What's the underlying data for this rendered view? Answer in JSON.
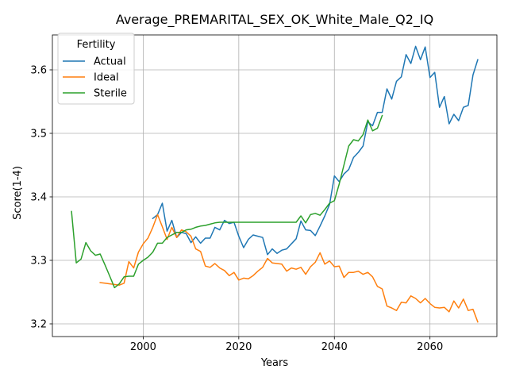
{
  "chart_data": {
    "type": "line",
    "title": "Average_PREMARITAL_SEX_OK_White_Male_Q2_IQ",
    "xlabel": "Years",
    "ylabel": "Score(1-4)",
    "xlim": [
      1981,
      2074
    ],
    "ylim": [
      3.18,
      3.655
    ],
    "xticks": [
      2000,
      2020,
      2040,
      2060
    ],
    "yticks": [
      3.2,
      3.3,
      3.4,
      3.5,
      3.6
    ],
    "grid": true,
    "legend": {
      "title": "Fertility",
      "placement": "upper-left"
    },
    "series": [
      {
        "name": "Actual",
        "color": "#1f77b4",
        "x": [
          2002,
          2003,
          2004,
          2005,
          2006,
          2007,
          2008,
          2009,
          2010,
          2011,
          2012,
          2013,
          2014,
          2015,
          2016,
          2017,
          2018,
          2019,
          2020,
          2021,
          2022,
          2023,
          2024,
          2025,
          2026,
          2027,
          2028,
          2029,
          2030,
          2031,
          2032,
          2033,
          2034,
          2035,
          2036,
          2037,
          2038,
          2039,
          2040,
          2041,
          2042,
          2043,
          2044,
          2045,
          2046,
          2047,
          2048,
          2049,
          2050,
          2051,
          2052,
          2053,
          2054,
          2055,
          2056,
          2057,
          2058,
          2059,
          2060,
          2061,
          2062,
          2063,
          2064,
          2065,
          2066,
          2067,
          2068,
          2069,
          2070
        ],
        "y": [
          3.366,
          3.372,
          3.39,
          3.346,
          3.363,
          3.336,
          3.344,
          3.342,
          3.328,
          3.337,
          3.327,
          3.335,
          3.335,
          3.352,
          3.348,
          3.363,
          3.358,
          3.36,
          3.338,
          3.32,
          3.333,
          3.34,
          3.338,
          3.336,
          3.309,
          3.318,
          3.311,
          3.316,
          3.318,
          3.326,
          3.334,
          3.362,
          3.348,
          3.347,
          3.339,
          3.354,
          3.37,
          3.388,
          3.433,
          3.424,
          3.436,
          3.443,
          3.462,
          3.47,
          3.48,
          3.518,
          3.512,
          3.533,
          3.533,
          3.57,
          3.554,
          3.582,
          3.589,
          3.624,
          3.61,
          3.637,
          3.616,
          3.636,
          3.588,
          3.596,
          3.541,
          3.558,
          3.515,
          3.53,
          3.52,
          3.541,
          3.544,
          3.592,
          3.616
        ]
      },
      {
        "name": "Ideal",
        "color": "#ff7f0e",
        "x": [
          1991,
          1992,
          1993,
          1994,
          1995,
          1996,
          1997,
          1998,
          1999,
          2000,
          2001,
          2002,
          2003,
          2004,
          2005,
          2006,
          2007,
          2008,
          2009,
          2010,
          2011,
          2012,
          2013,
          2014,
          2015,
          2016,
          2017,
          2018,
          2019,
          2020,
          2021,
          2022,
          2023,
          2024,
          2025,
          2026,
          2027,
          2028,
          2029,
          2030,
          2031,
          2032,
          2033,
          2034,
          2035,
          2036,
          2037,
          2038,
          2039,
          2040,
          2041,
          2042,
          2043,
          2044,
          2045,
          2046,
          2047,
          2048,
          2049,
          2050,
          2051,
          2052,
          2053,
          2054,
          2055,
          2056,
          2057,
          2058,
          2059,
          2060,
          2061,
          2062,
          2063,
          2064,
          2065,
          2066,
          2067,
          2068,
          2069,
          2070
        ],
        "y": [
          3.265,
          3.264,
          3.263,
          3.262,
          3.261,
          3.264,
          3.298,
          3.288,
          3.313,
          3.326,
          3.335,
          3.352,
          3.372,
          3.353,
          3.333,
          3.352,
          3.336,
          3.348,
          3.345,
          3.338,
          3.318,
          3.314,
          3.291,
          3.289,
          3.295,
          3.288,
          3.284,
          3.276,
          3.281,
          3.269,
          3.272,
          3.271,
          3.276,
          3.283,
          3.289,
          3.303,
          3.296,
          3.295,
          3.294,
          3.283,
          3.288,
          3.286,
          3.289,
          3.278,
          3.29,
          3.297,
          3.312,
          3.294,
          3.299,
          3.29,
          3.291,
          3.273,
          3.281,
          3.281,
          3.283,
          3.278,
          3.281,
          3.274,
          3.259,
          3.255,
          3.228,
          3.225,
          3.221,
          3.234,
          3.233,
          3.244,
          3.24,
          3.233,
          3.24,
          3.232,
          3.226,
          3.225,
          3.226,
          3.219,
          3.236,
          3.225,
          3.239,
          3.221,
          3.223,
          3.203
        ]
      },
      {
        "name": "Sterile",
        "color": "#2ca02c",
        "x": [
          1985,
          1986,
          1987,
          1988,
          1989,
          1990,
          1991,
          1992,
          1993,
          1994,
          1995,
          1996,
          1997,
          1998,
          1999,
          2000,
          2001,
          2002,
          2003,
          2004,
          2005,
          2006,
          2007,
          2008,
          2009,
          2010,
          2011,
          2012,
          2013,
          2014,
          2015,
          2016,
          2017,
          2018,
          2019,
          2020,
          2021,
          2022,
          2023,
          2024,
          2025,
          2026,
          2027,
          2028,
          2029,
          2030,
          2031,
          2032,
          2033,
          2034,
          2035,
          2036,
          2037,
          2038,
          2039,
          2040,
          2041,
          2042,
          2043,
          2044,
          2045,
          2046,
          2047,
          2048,
          2049,
          2050
        ],
        "y": [
          3.377,
          3.296,
          3.302,
          3.328,
          3.315,
          3.308,
          3.31,
          3.293,
          3.275,
          3.257,
          3.263,
          3.274,
          3.275,
          3.275,
          3.294,
          3.3,
          3.305,
          3.313,
          3.327,
          3.327,
          3.336,
          3.34,
          3.344,
          3.344,
          3.348,
          3.349,
          3.352,
          3.354,
          3.355,
          3.357,
          3.359,
          3.36,
          3.36,
          3.36,
          3.36,
          3.36,
          3.36,
          3.36,
          3.36,
          3.36,
          3.36,
          3.36,
          3.36,
          3.36,
          3.36,
          3.36,
          3.36,
          3.36,
          3.37,
          3.359,
          3.372,
          3.374,
          3.371,
          3.38,
          3.39,
          3.394,
          3.42,
          3.45,
          3.48,
          3.49,
          3.488,
          3.498,
          3.521,
          3.504,
          3.508,
          3.528
        ]
      }
    ]
  }
}
